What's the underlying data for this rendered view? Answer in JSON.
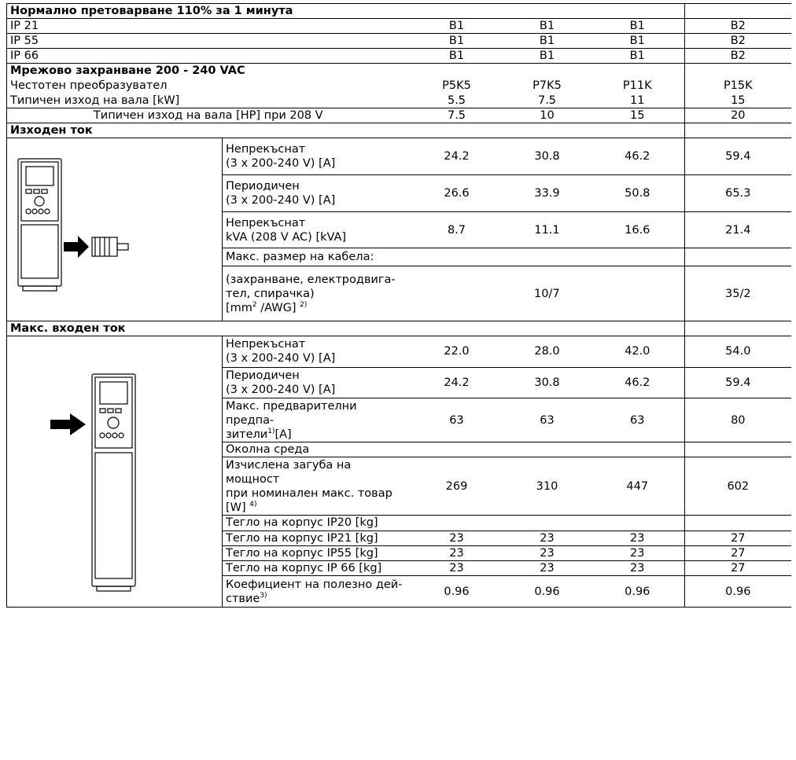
{
  "title": "Нормално претоварване 110% за 1 минута",
  "enclosure_rows": [
    {
      "label": "IP 21",
      "values": [
        "B1",
        "B1",
        "B1",
        "B2"
      ]
    },
    {
      "label": "IP 55",
      "values": [
        "B1",
        "B1",
        "B1",
        "B2"
      ]
    },
    {
      "label": "IP 66",
      "values": [
        "B1",
        "B1",
        "B1",
        "B2"
      ]
    }
  ],
  "supply": {
    "title": "Мрежово захранване 200 - 240 VAC",
    "rows": [
      {
        "label": "Честотен преобразувател",
        "values": [
          "P5K5",
          "P7K5",
          "P11K",
          "P15K"
        ]
      },
      {
        "label": "Типичен изход на вала [kW]",
        "values": [
          "5.5",
          "7.5",
          "11",
          "15"
        ]
      },
      {
        "label": "Типичен изход на вала [HP] при 208 V",
        "values": [
          "7.5",
          "10",
          "15",
          "20"
        ]
      }
    ]
  },
  "sections": [
    {
      "title": "Изходен ток",
      "rows": [
        {
          "desc": [
            "Непрекъснат\n(3 x 200-240 V) [A]"
          ],
          "values": [
            "24.2",
            "30.8",
            "46.2",
            "59.4"
          ]
        },
        {
          "desc": [
            "Периодичен\n(3 x 200-240 V) [A]"
          ],
          "values": [
            "26.6",
            "33.9",
            "50.8",
            "65.3"
          ]
        },
        {
          "desc": [
            "Непрекъснат\nkVA (208 V AC) [kVA]"
          ],
          "values": [
            "8.7",
            "11.1",
            "16.6",
            "21.4"
          ]
        },
        {
          "desc": [
            "Макс. размер на кабела:"
          ],
          "values": []
        },
        {
          "desc": [
            "(захранване,   електродвига-\nтел, спирачка)\n[mm",
            {
              "sup": "2"
            },
            " /AWG] ",
            {
              "sup": "2)"
            }
          ],
          "values": [
            "10/7",
            "35/2"
          ]
        }
      ]
    },
    {
      "title": "Макс. входен ток",
      "rows": [
        {
          "desc": [
            "Непрекъснат\n(3 x 200-240 V) [A]"
          ],
          "values": [
            "22.0",
            "28.0",
            "42.0",
            "54.0"
          ]
        },
        {
          "desc": [
            "Периодичен\n(3 x 200-240 V) [A]"
          ],
          "values": [
            "24.2",
            "30.8",
            "46.2",
            "59.4"
          ]
        },
        {
          "desc": [
            "Макс. предварителни предпа-\nзители",
            {
              "sup": "1)"
            },
            "[A]"
          ],
          "values": [
            "63",
            "63",
            "63",
            "80"
          ]
        },
        {
          "desc": [
            "Околна среда"
          ],
          "values": []
        },
        {
          "desc": [
            "Изчислена загуба на мощност\nпри  номинален  макс.  товар\n[W] ",
            {
              "sup": "4)"
            }
          ],
          "values": [
            "269",
            "310",
            "447",
            "602"
          ]
        },
        {
          "desc": [
            "Тегло на корпус IP20 [kg]"
          ],
          "values": []
        },
        {
          "desc": [
            "Тегло на корпус IP21 [kg]"
          ],
          "values": [
            "23",
            "23",
            "23",
            "27"
          ]
        },
        {
          "desc": [
            "Тегло на корпус IP55 [kg]"
          ],
          "values": [
            "23",
            "23",
            "23",
            "27"
          ]
        },
        {
          "desc": [
            "Тегло на корпус IP 66 [kg]"
          ],
          "values": [
            "23",
            "23",
            "23",
            "27"
          ]
        },
        {
          "desc": [
            "Коефициент на полезно дей-\nствие",
            {
              "sup": "3)"
            }
          ],
          "values": [
            "0.96",
            "0.96",
            "0.96",
            "0.96"
          ]
        }
      ]
    }
  ]
}
